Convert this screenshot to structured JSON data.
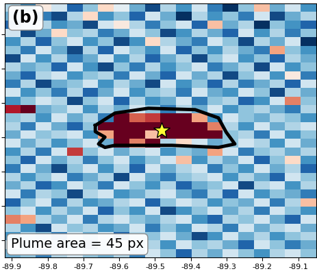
{
  "chart_data": {
    "type": "heatmap",
    "panel_label": "(b)",
    "annotation": "Plume area = 45 px",
    "xlim": [
      -89.92,
      -89.05
    ],
    "ylim": [
      29.8,
      30.54
    ],
    "xticks": [
      -89.9,
      -89.8,
      -89.7,
      -89.6,
      -89.5,
      -89.4,
      -89.3,
      -89.2,
      -89.1
    ],
    "yticks": [
      29.85,
      29.95,
      30.05,
      30.15,
      30.25,
      30.35,
      30.45
    ],
    "tick_labels": "x",
    "grid": false,
    "color_range": [
      -1.0,
      1.0
    ],
    "cells": [
      [
        -0.3,
        -0.6,
        0.1,
        -0.2,
        -0.8,
        -0.4,
        0.2,
        -0.1,
        -0.5,
        -0.9,
        -0.3,
        -0.6,
        -0.2,
        -0.7,
        -1.0,
        -0.4,
        0.3,
        -0.5,
        -0.2,
        -0.6
      ],
      [
        -0.5,
        -0.2,
        -0.7,
        -0.9,
        -0.3,
        0.2,
        -0.6,
        -0.4,
        -0.8,
        -0.2,
        -0.5,
        -1.0,
        -0.3,
        -0.6,
        -0.4,
        -0.7,
        -0.2,
        -0.9,
        -0.5,
        -0.3
      ],
      [
        -0.8,
        -0.4,
        -0.3,
        -0.6,
        -0.5,
        -0.9,
        -0.2,
        0.1,
        -0.3,
        -0.7,
        -0.4,
        -0.2,
        -0.8,
        0.3,
        -0.5,
        -0.3,
        -1.0,
        -0.4,
        -0.6,
        -0.8
      ],
      [
        -0.2,
        -0.9,
        -0.5,
        0.2,
        -0.4,
        -0.3,
        -0.7,
        -0.5,
        -0.2,
        -0.4,
        -0.9,
        -0.6,
        -0.3,
        -0.5,
        -0.8,
        -0.2,
        -0.6,
        -0.3,
        -0.7,
        -0.4
      ],
      [
        -0.6,
        -0.3,
        -0.8,
        -0.4,
        -0.2,
        -0.6,
        -0.4,
        -0.9,
        -0.6,
        0.2,
        -0.3,
        -0.5,
        -0.7,
        -0.2,
        -0.4,
        -0.9,
        -0.3,
        -0.5,
        -0.2,
        -1.0
      ],
      [
        -0.4,
        -0.7,
        -0.2,
        -0.5,
        -0.9,
        -0.3,
        -0.8,
        -0.2,
        -0.4,
        -0.6,
        -0.2,
        -0.8,
        -0.4,
        -0.6,
        -0.3,
        -0.5,
        -0.7,
        0.4,
        -0.4,
        -0.6
      ],
      [
        -0.9,
        -0.2,
        -0.6,
        -0.3,
        -0.7,
        -0.5,
        -0.2,
        -0.6,
        -0.3,
        -0.8,
        -0.5,
        -0.3,
        -0.9,
        -0.4,
        -0.2,
        -0.6,
        -0.4,
        -0.8,
        -0.3,
        -0.5
      ],
      [
        -0.3,
        -0.5,
        -0.4,
        -0.8,
        -0.2,
        -0.6,
        -0.9,
        -0.4,
        -0.7,
        -0.3,
        -0.6,
        -0.4,
        -0.2,
        -0.7,
        -0.5,
        -0.3,
        -0.9,
        -0.2,
        -0.6,
        -0.4
      ],
      [
        -0.5,
        -0.8,
        -0.3,
        -0.2,
        -0.6,
        -0.4,
        -0.3,
        -0.7,
        -0.2,
        -0.5,
        -0.8,
        -0.2,
        -0.5,
        -0.3,
        -0.9,
        -0.4,
        -0.2,
        -0.6,
        0.1,
        -0.7
      ],
      [
        -0.7,
        -0.3,
        -0.9,
        -0.5,
        -0.4,
        -0.2,
        -0.6,
        -0.3,
        -0.5,
        -0.9,
        -0.2,
        -0.6,
        -0.4,
        -0.8,
        -0.3,
        -0.7,
        -0.5,
        -0.3,
        -0.8,
        -0.2
      ],
      [
        -0.2,
        -0.6,
        -0.4,
        -0.7,
        -0.3,
        -0.8,
        -0.5,
        -0.2,
        -0.6,
        -0.4,
        -0.3,
        -0.7,
        -0.2,
        -0.5,
        -0.6,
        -0.2,
        -0.4,
        -0.9,
        -0.3,
        -0.5
      ],
      [
        -0.6,
        -0.4,
        -0.2,
        -0.3,
        -0.9,
        -0.4,
        -0.2,
        -0.8,
        -0.3,
        -0.6,
        -0.5,
        -0.2,
        -0.7,
        -0.4,
        -0.3,
        -0.8,
        -0.6,
        -0.2,
        0.5,
        -0.4
      ],
      [
        0.8,
        1.0,
        -0.5,
        -0.4,
        -0.2,
        -0.6,
        -0.3,
        -0.5,
        -0.2,
        -0.4,
        -0.7,
        -0.3,
        -0.5,
        -0.2,
        -0.6,
        -0.4,
        -0.3,
        -0.5,
        -0.7,
        -0.3
      ],
      [
        -0.4,
        -0.3,
        -0.6,
        -0.2,
        -0.5,
        -0.3,
        -0.7,
        1.0,
        0.6,
        0.7,
        1.0,
        1.0,
        0.4,
        -0.6,
        -0.2,
        -0.4,
        -0.5,
        -0.3,
        -0.4,
        -0.6
      ],
      [
        -0.3,
        -0.7,
        -0.2,
        -0.5,
        -0.8,
        -0.4,
        1.0,
        1.0,
        1.0,
        1.0,
        1.0,
        1.0,
        1.0,
        0.5,
        -0.3,
        -0.6,
        -0.2,
        -0.5,
        -0.3,
        -0.2
      ],
      [
        -0.5,
        -0.2,
        -0.4,
        -0.3,
        -0.2,
        -0.6,
        0.4,
        1.0,
        1.0,
        0.3,
        1.0,
        1.0,
        1.0,
        1.0,
        -0.4,
        -0.3,
        -0.7,
        -0.2,
        -0.6,
        -0.4
      ],
      [
        -0.2,
        -0.5,
        -0.3,
        -0.6,
        -0.4,
        -0.2,
        -0.5,
        1.0,
        0.5,
        1.0,
        -0.3,
        0.2,
        -0.2,
        -0.5,
        -0.4,
        -0.2,
        -0.3,
        -0.6,
        -0.2,
        -0.5
      ],
      [
        -0.6,
        -0.3,
        -0.7,
        -0.2,
        0.7,
        -0.4,
        -0.2,
        -0.5,
        -0.3,
        -0.2,
        -0.6,
        -0.4,
        -0.5,
        0.4,
        -0.2,
        -0.7,
        -0.4,
        -0.3,
        -0.5,
        -0.3
      ],
      [
        -0.4,
        -0.8,
        -0.2,
        -0.5,
        -0.3,
        -0.7,
        -0.4,
        -0.2,
        -0.6,
        -0.4,
        -0.2,
        0.3,
        -0.6,
        -0.3,
        -0.5,
        -0.2,
        -0.8,
        -0.4,
        0.2,
        -0.6
      ],
      [
        -0.7,
        -0.2,
        -0.5,
        -0.9,
        -0.4,
        -0.2,
        -0.6,
        -0.3,
        -0.8,
        -0.2,
        -0.5,
        -0.3,
        -0.2,
        -0.7,
        -0.4,
        -0.6,
        -0.2,
        -0.5,
        -0.3,
        -0.8
      ],
      [
        -0.3,
        -0.6,
        -0.4,
        -0.2,
        -0.7,
        -0.5,
        -0.3,
        -0.9,
        -0.2,
        -0.5,
        -0.7,
        -0.4,
        -0.3,
        -0.2,
        -0.6,
        -0.3,
        -0.5,
        -0.8,
        -0.2,
        -0.4
      ],
      [
        -0.5,
        -0.3,
        -0.8,
        -0.6,
        -0.2,
        -0.4,
        -0.7,
        -0.2,
        -0.4,
        -0.6,
        -0.3,
        -0.8,
        -0.5,
        -0.4,
        -0.2,
        -0.9,
        -0.3,
        -0.2,
        -0.6,
        -0.3
      ],
      [
        -0.2,
        -0.7,
        -0.3,
        -0.4,
        -0.9,
        -0.3,
        -0.2,
        -0.6,
        -0.5,
        -0.3,
        -0.2,
        -0.5,
        -0.7,
        -0.3,
        -0.8,
        -0.2,
        -0.6,
        -0.4,
        -0.5,
        -0.7
      ],
      [
        -0.8,
        -0.4,
        -0.2,
        -0.7,
        -0.3,
        -0.6,
        -0.5,
        -0.3,
        -0.2,
        -0.8,
        -0.4,
        -0.2,
        -0.3,
        -0.6,
        -0.4,
        -0.5,
        -0.2,
        -0.7,
        -0.3,
        0.3
      ],
      [
        -0.4,
        -0.2,
        -0.6,
        -0.3,
        -0.5,
        -0.2,
        -0.8,
        -0.4,
        -0.6,
        -0.2,
        -0.9,
        -0.6,
        -0.4,
        -0.2,
        -0.5,
        -0.3,
        -0.7,
        -0.2,
        -0.4,
        -0.6
      ],
      [
        0.5,
        0.4,
        -0.3,
        -0.5,
        -0.2,
        -0.7,
        -0.3,
        -0.2,
        -0.4,
        -0.5,
        -0.3,
        -0.2,
        -0.6,
        -0.8,
        -0.3,
        -0.4,
        -0.2,
        -0.5,
        -0.8,
        -0.2
      ],
      [
        -0.3,
        -0.6,
        -0.9,
        -0.2,
        -0.4,
        -0.3,
        -0.6,
        -0.5,
        -0.2,
        -0.7,
        -0.4,
        -0.6,
        -0.2,
        -0.3,
        -0.7,
        -0.2,
        -0.5,
        -0.3,
        -0.2,
        -0.5
      ],
      [
        -0.6,
        -0.3,
        -0.4,
        -0.7,
        -0.2,
        -0.5,
        -0.2,
        -0.8,
        -0.3,
        -0.4,
        -0.2,
        -0.5,
        -0.9,
        -0.6,
        -0.2,
        -0.5,
        -0.3,
        -0.6,
        -0.4,
        -0.3
      ],
      [
        -0.2,
        -0.5,
        -0.3,
        -0.4,
        -0.6,
        -0.9,
        -0.4,
        -0.2,
        -0.5,
        -0.3,
        -0.6,
        -0.2,
        -0.4,
        -0.3,
        -0.5,
        -0.8,
        -0.2,
        -0.4,
        -0.7,
        -0.5
      ],
      [
        -0.5,
        -0.4,
        -0.7,
        -0.3,
        -0.2,
        -0.4,
        -0.5,
        -0.3,
        -0.7,
        -0.2,
        -0.4,
        -0.8,
        -0.3,
        -0.5,
        -0.2,
        -0.4,
        -0.6,
        -0.3,
        -0.2,
        -0.4
      ]
    ],
    "plume_outline": {
      "x": [
        -89.667,
        -89.612,
        -89.519,
        -89.388,
        -89.323,
        -89.301,
        -89.277,
        -89.323,
        -89.453,
        -89.612,
        -89.64,
        -89.658,
        -89.64,
        -89.667
      ],
      "y": [
        30.184,
        30.22,
        30.234,
        30.23,
        30.206,
        30.164,
        30.13,
        30.12,
        30.126,
        30.126,
        30.12,
        30.13,
        30.15,
        30.166
      ]
    },
    "source": {
      "x": -89.481,
      "y": 30.17
    }
  }
}
